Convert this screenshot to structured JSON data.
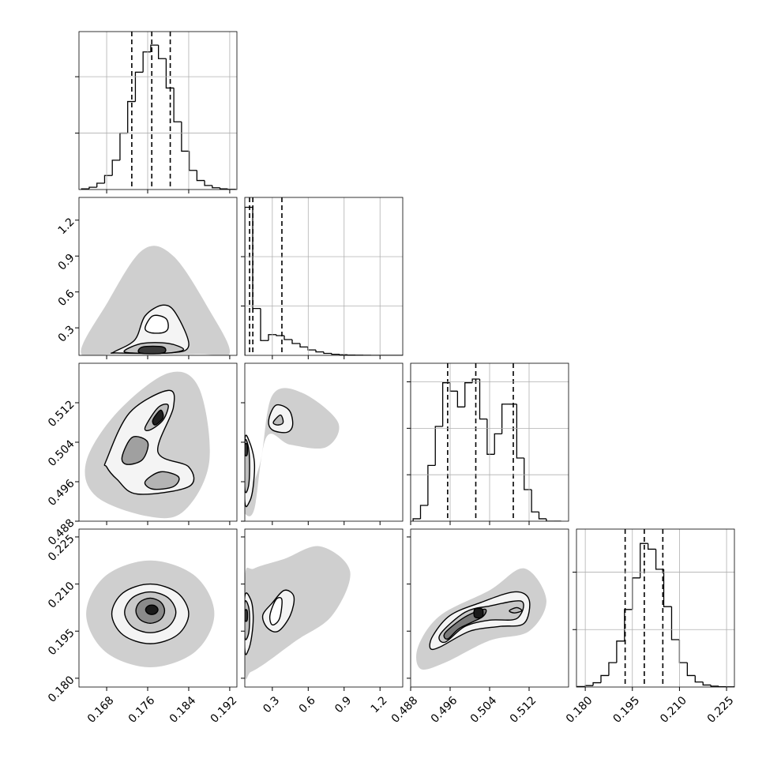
{
  "chart_data": [
    {
      "type": "histogram",
      "xlim": [
        0.1626,
        0.1934
      ],
      "xticks": [
        0.168,
        0.176,
        0.184,
        0.192
      ],
      "ylim": [
        0,
        700
      ],
      "yticks": [
        250,
        500
      ],
      "grid": true,
      "bins": [
        0.1631,
        0.1646,
        0.1661,
        0.1676,
        0.1691,
        0.1706,
        0.1721,
        0.1736,
        0.1751,
        0.1766,
        0.1781,
        0.1796,
        0.1811,
        0.1826,
        0.1841,
        0.1856,
        0.1871,
        0.1886,
        0.1901,
        0.1916,
        0.1931
      ],
      "values": [
        3,
        10,
        28,
        62,
        130,
        250,
        390,
        520,
        610,
        640,
        580,
        450,
        300,
        170,
        85,
        40,
        18,
        8,
        3,
        1
      ],
      "quantiles": [
        0.1729,
        0.1768,
        0.1804
      ]
    },
    {
      "type": "contour",
      "xlim": [
        0.1626,
        0.1934
      ],
      "xticks": [
        0.168,
        0.176,
        0.184,
        0.192
      ],
      "ylim": [
        0.07,
        1.39
      ],
      "yticks": [
        0.3,
        0.6,
        0.9,
        1.2
      ],
      "grid": false,
      "cloud": {
        "color": "#a8a8a8",
        "x": [
          0.163,
          0.168,
          0.175,
          0.181,
          0.188,
          0.192,
          0.186,
          0.17
        ],
        "y": [
          0.09,
          0.5,
          0.95,
          0.9,
          0.45,
          0.09,
          0.08,
          0.08
        ]
      },
      "contours": [
        {
          "color": "#f4f4f4",
          "x": [
            0.1695,
            0.1735,
            0.1755,
            0.179,
            0.1815,
            0.184,
            0.18,
            0.17
          ],
          "y": [
            0.1,
            0.2,
            0.4,
            0.49,
            0.42,
            0.15,
            0.09,
            0.09
          ]
        },
        {
          "color": "#c4c4c4",
          "x": [
            0.1715,
            0.175,
            0.18,
            0.183,
            0.18,
            0.173
          ],
          "y": [
            0.11,
            0.17,
            0.17,
            0.12,
            0.09,
            0.09
          ]
        },
        {
          "color": "#ffffff",
          "x": [
            0.1755,
            0.177,
            0.1795,
            0.18,
            0.179,
            0.1765
          ],
          "y": [
            0.3,
            0.4,
            0.38,
            0.3,
            0.26,
            0.26
          ]
        },
        {
          "color": "#3a3a3a",
          "x": [
            0.1745,
            0.175,
            0.179,
            0.179
          ],
          "y": [
            0.09,
            0.14,
            0.14,
            0.09
          ]
        }
      ]
    },
    {
      "type": "histogram",
      "xlim": [
        0.07,
        1.39
      ],
      "xticks": [
        0.3,
        0.6,
        0.9,
        1.2
      ],
      "ylim": [
        0,
        3200
      ],
      "yticks": [
        1000,
        2000
      ],
      "grid": true,
      "bins": [
        0.07,
        0.136,
        0.202,
        0.268,
        0.334,
        0.4,
        0.466,
        0.532,
        0.598,
        0.664,
        0.73,
        0.796,
        0.862,
        0.928,
        0.994,
        1.06,
        1.126,
        1.192,
        1.258,
        1.324,
        1.39
      ],
      "values": [
        3000,
        950,
        300,
        420,
        400,
        320,
        240,
        170,
        110,
        70,
        40,
        22,
        12,
        6,
        3,
        1,
        0,
        0,
        0,
        0
      ],
      "quantiles": [
        0.11,
        0.137,
        0.38
      ]
    },
    {
      "type": "contour",
      "xlim": [
        0.1626,
        0.1934
      ],
      "xticks": [
        0.168,
        0.176,
        0.184,
        0.192
      ],
      "ylim": [
        0.488,
        0.52
      ],
      "yticks": [
        0.488,
        0.496,
        0.504,
        0.512
      ],
      "grid": false,
      "cloud": {
        "color": "#a8a8a8",
        "x": [
          0.164,
          0.17,
          0.18,
          0.186,
          0.188,
          0.183,
          0.176,
          0.166
        ],
        "y": [
          0.5,
          0.51,
          0.518,
          0.515,
          0.5,
          0.49,
          0.489,
          0.493
        ]
      },
      "contours": [
        {
          "color": "#f4f4f4",
          "x": [
            0.168,
            0.1725,
            0.18,
            0.181,
            0.178,
            0.184,
            0.184,
            0.174,
            0.17,
            0.168
          ],
          "y": [
            0.5005,
            0.51,
            0.5145,
            0.511,
            0.502,
            0.499,
            0.495,
            0.4935,
            0.4965,
            0.499
          ]
        },
        {
          "color": "#bdbdbd",
          "x": [
            0.1755,
            0.178,
            0.18,
            0.179,
            0.1765
          ],
          "y": [
            0.507,
            0.511,
            0.5115,
            0.5085,
            0.5065
          ]
        },
        {
          "color": "#a0a0a0",
          "x": [
            0.171,
            0.173,
            0.176,
            0.175,
            0.172
          ],
          "y": [
            0.501,
            0.505,
            0.504,
            0.5005,
            0.4995
          ]
        },
        {
          "color": "#b4b4b4",
          "x": [
            0.1755,
            0.1785,
            0.182,
            0.181,
            0.177
          ],
          "y": [
            0.496,
            0.498,
            0.497,
            0.495,
            0.4945
          ]
        },
        {
          "color": "#202020",
          "x": [
            0.177,
            0.1785,
            0.179,
            0.1775
          ],
          "y": [
            0.5085,
            0.5105,
            0.509,
            0.5075
          ]
        }
      ]
    },
    {
      "type": "contour",
      "xlim": [
        0.07,
        1.39
      ],
      "xticks": [
        0.3,
        0.6,
        0.9,
        1.2
      ],
      "ylim": [
        0.488,
        0.52
      ],
      "yticks": [
        0.488,
        0.496,
        0.504,
        0.512
      ],
      "grid": false,
      "cloud": {
        "color": "#a8a8a8",
        "x": [
          0.07,
          0.2,
          0.3,
          0.55,
          0.85,
          0.75,
          0.45,
          0.25,
          0.15,
          0.07
        ],
        "y": [
          0.491,
          0.5,
          0.5135,
          0.514,
          0.508,
          0.503,
          0.5035,
          0.505,
          0.4905,
          0.4895
        ]
      },
      "contours": [
        {
          "color": "#f4f4f4",
          "x": [
            0.27,
            0.33,
            0.44,
            0.47,
            0.42,
            0.3
          ],
          "y": [
            0.5085,
            0.5115,
            0.5105,
            0.5075,
            0.506,
            0.5065
          ]
        },
        {
          "color": "#f4f4f4",
          "x": [
            0.07,
            0.11,
            0.15,
            0.14,
            0.11,
            0.07
          ],
          "y": [
            0.5045,
            0.504,
            0.5,
            0.495,
            0.492,
            0.492
          ]
        },
        {
          "color": "#bdbdbd",
          "x": [
            0.32,
            0.37,
            0.39,
            0.35,
            0.31
          ],
          "y": [
            0.5085,
            0.5095,
            0.508,
            0.5075,
            0.5078
          ]
        },
        {
          "color": "#bdbdbd",
          "x": [
            0.07,
            0.1,
            0.11,
            0.1,
            0.07
          ],
          "y": [
            0.504,
            0.503,
            0.499,
            0.495,
            0.4945
          ]
        },
        {
          "color": "#3a3a3a",
          "x": [
            0.07,
            0.09,
            0.09,
            0.07
          ],
          "y": [
            0.5035,
            0.5035,
            0.5015,
            0.5015
          ]
        }
      ]
    },
    {
      "type": "histogram",
      "xlim": [
        0.488,
        0.52
      ],
      "xticks": [
        0.488,
        0.496,
        0.504,
        0.512
      ],
      "ylim": [
        0,
        850
      ],
      "yticks": [
        250,
        500,
        750
      ],
      "grid": true,
      "bins": [
        0.4885,
        0.49,
        0.4915,
        0.493,
        0.4945,
        0.496,
        0.4975,
        0.499,
        0.5005,
        0.502,
        0.5035,
        0.505,
        0.5065,
        0.508,
        0.5095,
        0.511,
        0.5125,
        0.514,
        0.5155,
        0.517,
        0.5185
      ],
      "values": [
        13,
        85,
        300,
        510,
        745,
        700,
        615,
        745,
        765,
        550,
        360,
        470,
        630,
        630,
        340,
        170,
        50,
        13,
        0,
        0
      ],
      "quantiles": [
        0.4955,
        0.5012,
        0.5088
      ]
    },
    {
      "type": "contour",
      "xlim": [
        0.1626,
        0.1934
      ],
      "xticks": [
        0.168,
        0.176,
        0.184,
        0.192
      ],
      "ylim": [
        0.1772,
        0.2275
      ],
      "yticks": [
        {
          "value": 0.18,
          "label": "0.180"
        },
        0.195,
        {
          "value": 0.21,
          "label": "0.210"
        },
        0.225
      ],
      "grid": false,
      "cloud": {
        "color": "#a8a8a8",
        "x": [
          0.189,
          0.1853,
          0.1765,
          0.1677,
          0.164,
          0.1677,
          0.1765,
          0.1853
        ],
        "y": [
          0.2005,
          0.2125,
          0.2175,
          0.2125,
          0.2005,
          0.1885,
          0.1835,
          0.1885
        ]
      },
      "contours": [
        {
          "color": "#f4f4f4",
          "x": [
            0.184,
            0.1818,
            0.1765,
            0.1712,
            0.169,
            0.1712,
            0.1765,
            0.1818
          ],
          "y": [
            0.2005,
            0.2072,
            0.21,
            0.2072,
            0.2005,
            0.1938,
            0.191,
            0.1938
          ]
        },
        {
          "color": "#c8c8c8",
          "x": [
            0.1815,
            0.18,
            0.1765,
            0.173,
            0.1715,
            0.173,
            0.1765,
            0.18
          ],
          "y": [
            0.201,
            0.2056,
            0.2075,
            0.2056,
            0.201,
            0.1964,
            0.1945,
            0.1964
          ]
        },
        {
          "color": "#8a8a8a",
          "x": [
            0.1793,
            0.1785,
            0.1765,
            0.1745,
            0.1737,
            0.1745,
            0.1765,
            0.1785
          ],
          "y": [
            0.2015,
            0.2043,
            0.2055,
            0.2043,
            0.2015,
            0.1987,
            0.1975,
            0.1987
          ]
        },
        {
          "color": "#1a1a1a",
          "x": [
            0.178,
            0.1776,
            0.1768,
            0.176,
            0.1756,
            0.176,
            0.1768,
            0.1776
          ],
          "y": [
            0.2018,
            0.2029,
            0.2033,
            0.2029,
            0.2018,
            0.2007,
            0.2003,
            0.2007
          ]
        }
      ]
    },
    {
      "type": "contour",
      "xlim": [
        0.07,
        1.39
      ],
      "xticks": [
        0.3,
        0.6,
        0.9,
        1.2
      ],
      "ylim": [
        0.1772,
        0.2275
      ],
      "yticks": [
        {
          "value": 0.18,
          "label": "0.180"
        },
        0.195,
        {
          "value": 0.21,
          "label": "0.210"
        },
        0.225
      ],
      "grid": false,
      "cloud": {
        "color": "#a8a8a8",
        "x": [
          0.07,
          0.15,
          0.4,
          0.7,
          0.95,
          0.8,
          0.5,
          0.25,
          0.12,
          0.07
        ],
        "y": [
          0.212,
          0.215,
          0.218,
          0.222,
          0.214,
          0.2,
          0.192,
          0.185,
          0.182,
          0.182
        ]
      },
      "contours": [
        {
          "color": "#f4f4f4",
          "x": [
            0.07,
            0.12,
            0.14,
            0.13,
            0.1,
            0.07
          ],
          "y": [
            0.206,
            0.205,
            0.2,
            0.194,
            0.189,
            0.189
          ]
        },
        {
          "color": "#f4f4f4",
          "x": [
            0.22,
            0.3,
            0.4,
            0.48,
            0.45,
            0.35,
            0.26
          ],
          "y": [
            0.2,
            0.204,
            0.208,
            0.206,
            0.2,
            0.195,
            0.196
          ]
        },
        {
          "color": "#bdbdbd",
          "x": [
            0.07,
            0.1,
            0.11,
            0.1,
            0.07
          ],
          "y": [
            0.204,
            0.203,
            0.199,
            0.194,
            0.193
          ]
        },
        {
          "color": "#ffffff",
          "x": [
            0.28,
            0.33,
            0.38,
            0.36,
            0.3
          ],
          "y": [
            0.2,
            0.205,
            0.205,
            0.199,
            0.197
          ]
        },
        {
          "color": "#3a3a3a",
          "x": [
            0.07,
            0.09,
            0.09,
            0.07
          ],
          "y": [
            0.2015,
            0.2015,
            0.1985,
            0.1985
          ]
        }
      ]
    },
    {
      "type": "contour",
      "xlim": [
        0.488,
        0.52
      ],
      "xticks": [
        0.488,
        0.496,
        0.504,
        0.512
      ],
      "ylim": [
        0.1772,
        0.2275
      ],
      "yticks": [
        {
          "value": 0.18,
          "label": "0.180"
        },
        0.195,
        {
          "value": 0.21,
          "label": "0.210"
        },
        0.225
      ],
      "grid": false,
      "cloud": {
        "color": "#a8a8a8",
        "x": [
          0.4895,
          0.494,
          0.504,
          0.511,
          0.5155,
          0.512,
          0.504,
          0.495,
          0.49
        ],
        "y": [
          0.19,
          0.2,
          0.208,
          0.215,
          0.205,
          0.195,
          0.192,
          0.185,
          0.183
        ]
      },
      "contours": [
        {
          "color": "#f4f4f4",
          "x": [
            0.4925,
            0.496,
            0.502,
            0.509,
            0.512,
            0.511,
            0.506,
            0.5,
            0.494,
            0.492
          ],
          "y": [
            0.1935,
            0.2,
            0.204,
            0.2075,
            0.205,
            0.1975,
            0.1965,
            0.195,
            0.19,
            0.1895
          ]
        },
        {
          "color": "#c8c8c8",
          "x": [
            0.494,
            0.499,
            0.504,
            0.5105,
            0.5095,
            0.504,
            0.499,
            0.495
          ],
          "y": [
            0.194,
            0.201,
            0.203,
            0.2045,
            0.199,
            0.1985,
            0.1965,
            0.1915
          ]
        },
        {
          "color": "#7a7a7a",
          "x": [
            0.495,
            0.499,
            0.503,
            0.5025,
            0.498,
            0.4955
          ],
          "y": [
            0.1945,
            0.1995,
            0.202,
            0.1995,
            0.196,
            0.1925
          ]
        },
        {
          "color": "#bdbdbd",
          "x": [
            0.508,
            0.5095,
            0.5105,
            0.509
          ],
          "y": [
            0.2015,
            0.2025,
            0.2015,
            0.2008
          ]
        },
        {
          "color": "#1a1a1a",
          "x": [
            0.501,
            0.5025,
            0.5025,
            0.501
          ],
          "y": [
            0.1995,
            0.1995,
            0.202,
            0.202
          ]
        }
      ]
    },
    {
      "type": "histogram",
      "xlim": [
        0.1772,
        0.2275
      ],
      "xticks": [
        {
          "value": 0.18,
          "label": "0.180"
        },
        0.195,
        {
          "value": 0.21,
          "label": "0.210"
        },
        0.225
      ],
      "ylim": [
        0,
        1100
      ],
      "yticks": [
        400,
        800
      ],
      "grid": true,
      "bins": [
        0.1775,
        0.18,
        0.1825,
        0.185,
        0.1875,
        0.19,
        0.1925,
        0.195,
        0.1975,
        0.2,
        0.2025,
        0.205,
        0.2075,
        0.21,
        0.2125,
        0.215,
        0.2175,
        0.22,
        0.2225,
        0.225,
        0.2275
      ],
      "values": [
        3,
        10,
        30,
        80,
        170,
        320,
        540,
        760,
        1000,
        960,
        820,
        560,
        330,
        170,
        80,
        35,
        14,
        6,
        2,
        1
      ],
      "quantiles": [
        0.1927,
        0.1988,
        0.2047
      ]
    }
  ]
}
